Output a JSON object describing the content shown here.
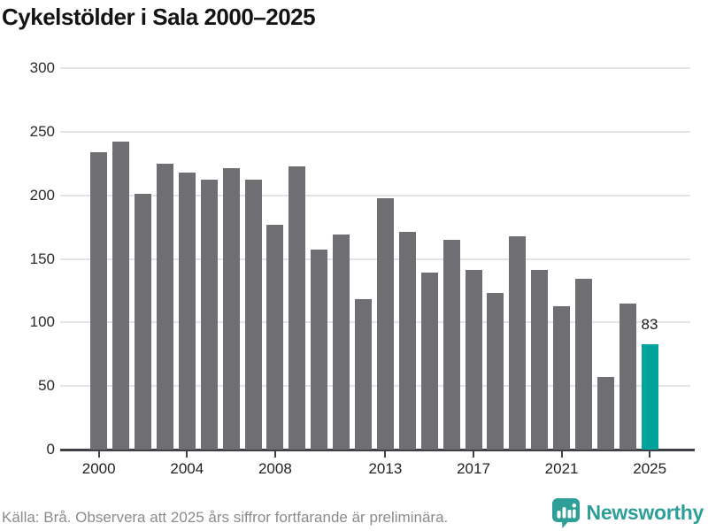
{
  "title": "Cykelstölder i Sala 2000–2025",
  "chart_data": {
    "type": "bar",
    "x": [
      2000,
      2001,
      2002,
      2003,
      2004,
      2005,
      2006,
      2007,
      2008,
      2009,
      2010,
      2011,
      2012,
      2013,
      2014,
      2015,
      2016,
      2017,
      2018,
      2019,
      2020,
      2021,
      2022,
      2023,
      2024,
      2025
    ],
    "values": [
      234,
      242,
      201,
      225,
      218,
      212,
      221,
      212,
      177,
      223,
      157,
      169,
      118,
      198,
      171,
      139,
      165,
      141,
      123,
      168,
      141,
      113,
      134,
      57,
      115,
      83
    ],
    "title": "Cykelstölder i Sala 2000–2025",
    "xlabel": "",
    "ylabel": "",
    "ylim": [
      0,
      300
    ],
    "yticks": [
      0,
      50,
      100,
      150,
      200,
      250,
      300
    ],
    "xtick_labels": [
      2000,
      2004,
      2008,
      2013,
      2017,
      2021,
      2025
    ],
    "grid": "horizontal",
    "legend": "none",
    "bar_color": "#6e6e73",
    "highlight_color": "#00a49c",
    "highlight_year": 2025,
    "highlight_label": "83"
  },
  "footer": {
    "source": "Källa: Brå. Observera att 2025 års siffror fortfarande är preliminära.",
    "brand": "Newsworthy"
  }
}
